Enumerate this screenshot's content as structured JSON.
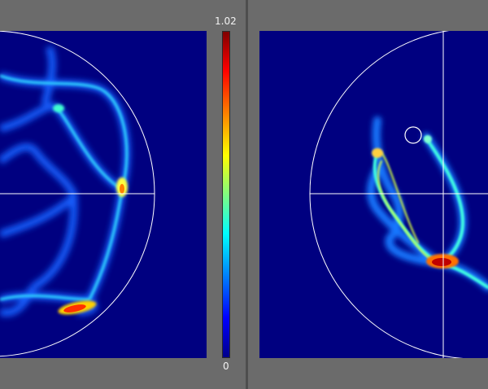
{
  "colorbar": {
    "max_label": "1.02",
    "min_label": "0",
    "colormap": "jet"
  },
  "colors": {
    "background": "#6b6b6b",
    "plot_background": "#000080",
    "reference_lines": "#ffffff"
  }
}
